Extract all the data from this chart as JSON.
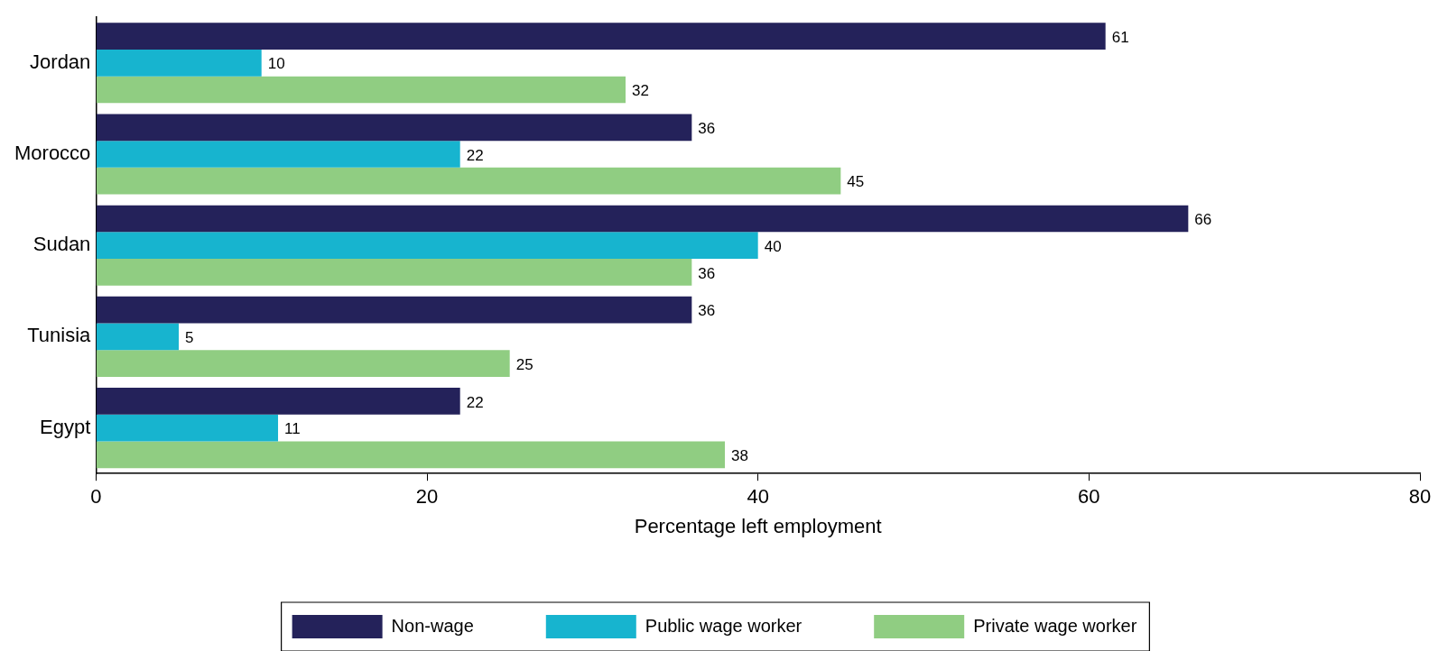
{
  "chart_data": {
    "type": "bar",
    "orientation": "horizontal",
    "xlabel": "Percentage left employment",
    "categories": [
      "Jordan",
      "Morocco",
      "Sudan",
      "Tunisia",
      "Egypt"
    ],
    "series": [
      {
        "name": "Non-wage",
        "color": "#24225a",
        "values": [
          61,
          36,
          66,
          36,
          22
        ]
      },
      {
        "name": "Public wage worker",
        "color": "#17b4cf",
        "values": [
          10,
          22,
          40,
          5,
          11
        ]
      },
      {
        "name": "Private wage worker",
        "color": "#90cd82",
        "values": [
          32,
          45,
          36,
          25,
          38
        ]
      }
    ],
    "xlim": [
      0,
      80
    ],
    "xticks": [
      0,
      20,
      40,
      60,
      80
    ],
    "grid": false,
    "legend": "bottom",
    "data_labels": true
  }
}
